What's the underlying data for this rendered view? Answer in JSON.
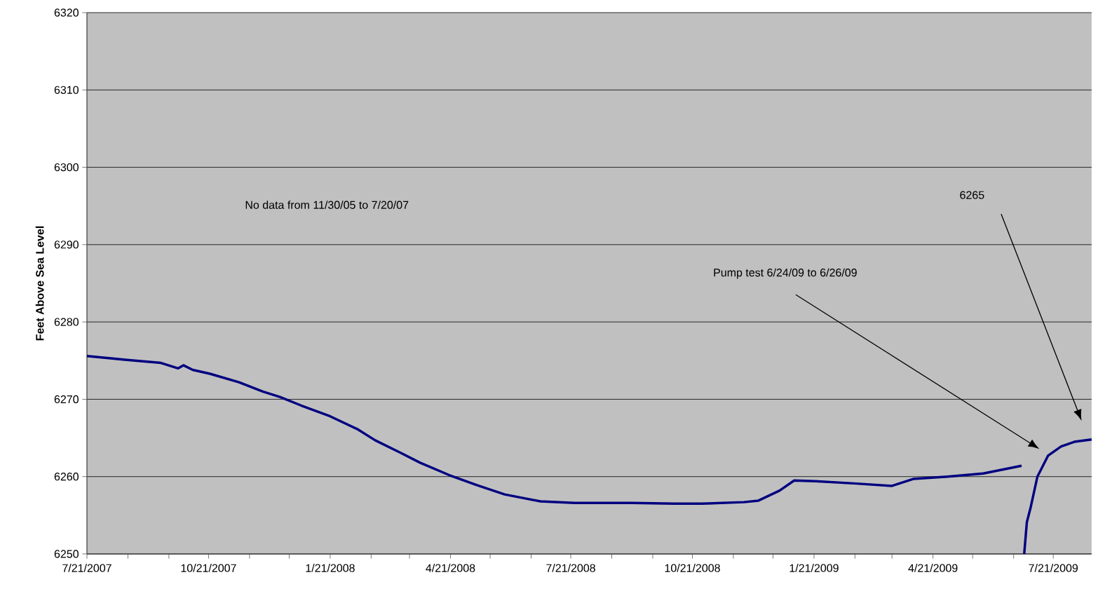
{
  "chart_data": {
    "type": "line",
    "ylabel": "Feet Above Sea Level",
    "x": [
      "2007-07-21",
      "2007-08-20",
      "2007-09-15",
      "2007-09-28",
      "2007-10-02",
      "2007-10-09",
      "2007-10-22",
      "2007-11-13",
      "2007-12-01",
      "2007-12-14",
      "2007-12-30",
      "2008-01-21",
      "2008-02-11",
      "2008-02-24",
      "2008-03-14",
      "2008-03-29",
      "2008-04-20",
      "2008-05-11",
      "2008-06-01",
      "2008-06-28",
      "2008-07-24",
      "2008-09-05",
      "2008-10-07",
      "2008-10-28",
      "2008-11-29",
      "2008-12-10",
      "2008-12-26",
      "2009-01-06",
      "2009-01-22",
      "2009-02-22",
      "2009-03-21",
      "2009-04-06",
      "2009-05-02",
      "2009-05-29",
      "2009-06-27",
      "2009-06-28",
      "2009-06-29",
      "2009-07-01",
      "2009-07-04",
      "2009-07-09",
      "2009-07-17",
      "2009-07-27",
      "2009-08-06",
      "2009-08-19"
    ],
    "series": [
      {
        "color": "#000080",
        "values": [
          6275.6,
          6275.1,
          6274.7,
          6274.0,
          6274.4,
          6273.8,
          6273.3,
          6272.2,
          6271.0,
          6270.3,
          6269.2,
          6267.8,
          6266.1,
          6264.7,
          6263.1,
          6261.8,
          6260.2,
          6258.9,
          6257.7,
          6256.8,
          6256.6,
          6256.6,
          6256.5,
          6256.5,
          6256.7,
          6256.9,
          6258.2,
          6259.5,
          6259.4,
          6259.1,
          6258.8,
          6259.7,
          6260.0,
          6260.4,
          6261.4,
          null,
          6250.0,
          6254.1,
          6256.1,
          6260.0,
          6262.7,
          6263.9,
          6264.5,
          6264.8
        ]
      }
    ],
    "xlim": [
      "2007-07-21",
      "2009-08-19"
    ],
    "xticks": [
      {
        "value": "2007-07-21",
        "label": "7/21/2007"
      },
      {
        "value": "2007-08-21",
        "label": null
      },
      {
        "value": "2007-09-21",
        "label": null
      },
      {
        "value": "2007-10-21",
        "label": "10/21/2007"
      },
      {
        "value": "2007-11-21",
        "label": null
      },
      {
        "value": "2007-12-21",
        "label": null
      },
      {
        "value": "2008-01-21",
        "label": "1/21/2008"
      },
      {
        "value": "2008-02-21",
        "label": null
      },
      {
        "value": "2008-03-21",
        "label": null
      },
      {
        "value": "2008-04-21",
        "label": "4/21/2008"
      },
      {
        "value": "2008-05-21",
        "label": null
      },
      {
        "value": "2008-06-21",
        "label": null
      },
      {
        "value": "2008-07-21",
        "label": "7/21/2008"
      },
      {
        "value": "2008-08-21",
        "label": null
      },
      {
        "value": "2008-09-21",
        "label": null
      },
      {
        "value": "2008-10-21",
        "label": "10/21/2008"
      },
      {
        "value": "2008-11-21",
        "label": null
      },
      {
        "value": "2008-12-21",
        "label": null
      },
      {
        "value": "2009-01-21",
        "label": "1/21/2009"
      },
      {
        "value": "2009-02-21",
        "label": null
      },
      {
        "value": "2009-03-21",
        "label": null
      },
      {
        "value": "2009-04-21",
        "label": "4/21/2009"
      },
      {
        "value": "2009-05-21",
        "label": null
      },
      {
        "value": "2009-06-21",
        "label": null
      },
      {
        "value": "2009-07-21",
        "label": "7/21/2009"
      }
    ],
    "ylim": [
      6250,
      6320
    ],
    "yticks": [
      6250,
      6260,
      6270,
      6280,
      6290,
      6300,
      6310,
      6320
    ],
    "grid": "y",
    "annotations": [
      "No data from 11/30/05 to 7/20/07",
      "Pump test 6/24/09 to 6/26/09",
      "6265"
    ]
  }
}
